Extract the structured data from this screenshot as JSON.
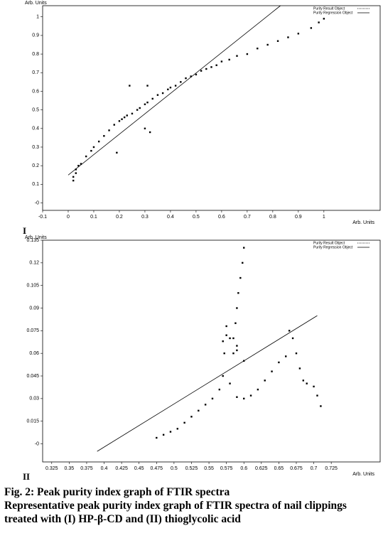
{
  "chart_data": [
    {
      "type": "scatter",
      "panel_label": "I",
      "y_label": "Arb. Units",
      "x_label": "Arb. Units",
      "legend": "top-right",
      "xlim": [
        -0.1,
        1.22
      ],
      "ylim": [
        -0.04,
        1.06
      ],
      "xticks": [
        -0.1,
        0,
        0.1,
        0.2,
        0.3,
        0.4,
        0.5,
        0.6,
        0.7,
        0.8,
        0.9,
        1
      ],
      "yticks": [
        {
          "value": 0,
          "label": "-0"
        },
        0.1,
        0.2,
        0.3,
        0.4,
        0.5,
        0.6,
        0.7,
        0.8,
        0.9,
        1
      ],
      "series": [
        {
          "name": "Purity Result Object",
          "color": "#000000",
          "mode": "markers",
          "x": [
            0.02,
            0.02,
            0.03,
            0.03,
            0.04,
            0.05,
            0.07,
            0.09,
            0.1,
            0.12,
            0.14,
            0.16,
            0.18,
            0.2,
            0.21,
            0.22,
            0.23,
            0.25,
            0.27,
            0.28,
            0.3,
            0.31,
            0.33,
            0.35,
            0.37,
            0.39,
            0.4,
            0.42,
            0.44,
            0.46,
            0.48,
            0.5,
            0.52,
            0.54,
            0.56,
            0.58,
            0.6,
            0.63,
            0.66,
            0.7,
            0.74,
            0.78,
            0.82,
            0.86,
            0.9,
            0.95,
            0.98,
            1.0,
            0.24,
            0.3,
            0.32,
            0.19,
            0.31
          ],
          "values": [
            0.12,
            0.14,
            0.16,
            0.18,
            0.2,
            0.21,
            0.25,
            0.28,
            0.3,
            0.33,
            0.36,
            0.39,
            0.42,
            0.44,
            0.45,
            0.46,
            0.47,
            0.48,
            0.5,
            0.51,
            0.53,
            0.54,
            0.56,
            0.58,
            0.59,
            0.61,
            0.62,
            0.63,
            0.65,
            0.67,
            0.68,
            0.69,
            0.71,
            0.72,
            0.73,
            0.74,
            0.76,
            0.77,
            0.79,
            0.8,
            0.83,
            0.85,
            0.87,
            0.89,
            0.91,
            0.94,
            0.97,
            0.99,
            0.63,
            0.4,
            0.38,
            0.27,
            0.63
          ]
        },
        {
          "name": "Purity Regression Object",
          "color": "#000000",
          "mode": "line",
          "x": [
            0,
            0.83
          ],
          "values": [
            0.15,
            1.06
          ]
        }
      ]
    },
    {
      "type": "scatter",
      "panel_label": "II",
      "y_label": "Arb. Units",
      "x_label": "Arb. Units",
      "legend": "top-right",
      "xlim": [
        0.312,
        0.795
      ],
      "ylim": [
        -0.012,
        0.135
      ],
      "xticks": [
        0.325,
        0.35,
        0.375,
        0.4,
        0.425,
        0.45,
        0.475,
        0.5,
        0.525,
        0.55,
        0.575,
        0.6,
        0.625,
        0.65,
        0.675,
        0.7,
        0.725
      ],
      "yticks": [
        {
          "value": 0,
          "label": "-0"
        },
        0.015,
        0.03,
        0.045,
        0.06,
        0.075,
        0.09,
        0.105,
        0.12,
        0.135
      ],
      "series": [
        {
          "name": "Purity Result Object",
          "color": "#000000",
          "mode": "markers",
          "x": [
            0.475,
            0.485,
            0.495,
            0.505,
            0.515,
            0.525,
            0.535,
            0.545,
            0.555,
            0.565,
            0.57,
            0.572,
            0.575,
            0.58,
            0.59,
            0.6,
            0.61,
            0.62,
            0.63,
            0.64,
            0.65,
            0.66,
            0.665,
            0.67,
            0.675,
            0.68,
            0.685,
            0.69,
            0.7,
            0.705,
            0.71,
            0.585,
            0.588,
            0.59,
            0.592,
            0.595,
            0.598,
            0.6,
            0.585,
            0.59,
            0.57,
            0.575,
            0.58,
            0.59,
            0.6
          ],
          "values": [
            0.004,
            0.006,
            0.008,
            0.01,
            0.014,
            0.018,
            0.022,
            0.026,
            0.03,
            0.036,
            0.045,
            0.06,
            0.078,
            0.04,
            0.031,
            0.03,
            0.032,
            0.036,
            0.042,
            0.048,
            0.054,
            0.058,
            0.075,
            0.07,
            0.06,
            0.05,
            0.042,
            0.04,
            0.038,
            0.032,
            0.025,
            0.07,
            0.08,
            0.09,
            0.1,
            0.11,
            0.12,
            0.13,
            0.06,
            0.065,
            0.068,
            0.072,
            0.07,
            0.062,
            0.055
          ]
        },
        {
          "name": "Purity Regression Object",
          "color": "#000000",
          "mode": "line",
          "x": [
            0.39,
            0.705
          ],
          "values": [
            -0.005,
            0.085
          ]
        }
      ]
    }
  ],
  "caption": {
    "title": "Fig. 2: Peak purity index graph of FTIR spectra",
    "text": "Representative peak purity index graph of FTIR spectra of nail clippings treated with (I) HP-β-CD and (II) thioglycolic acid"
  }
}
